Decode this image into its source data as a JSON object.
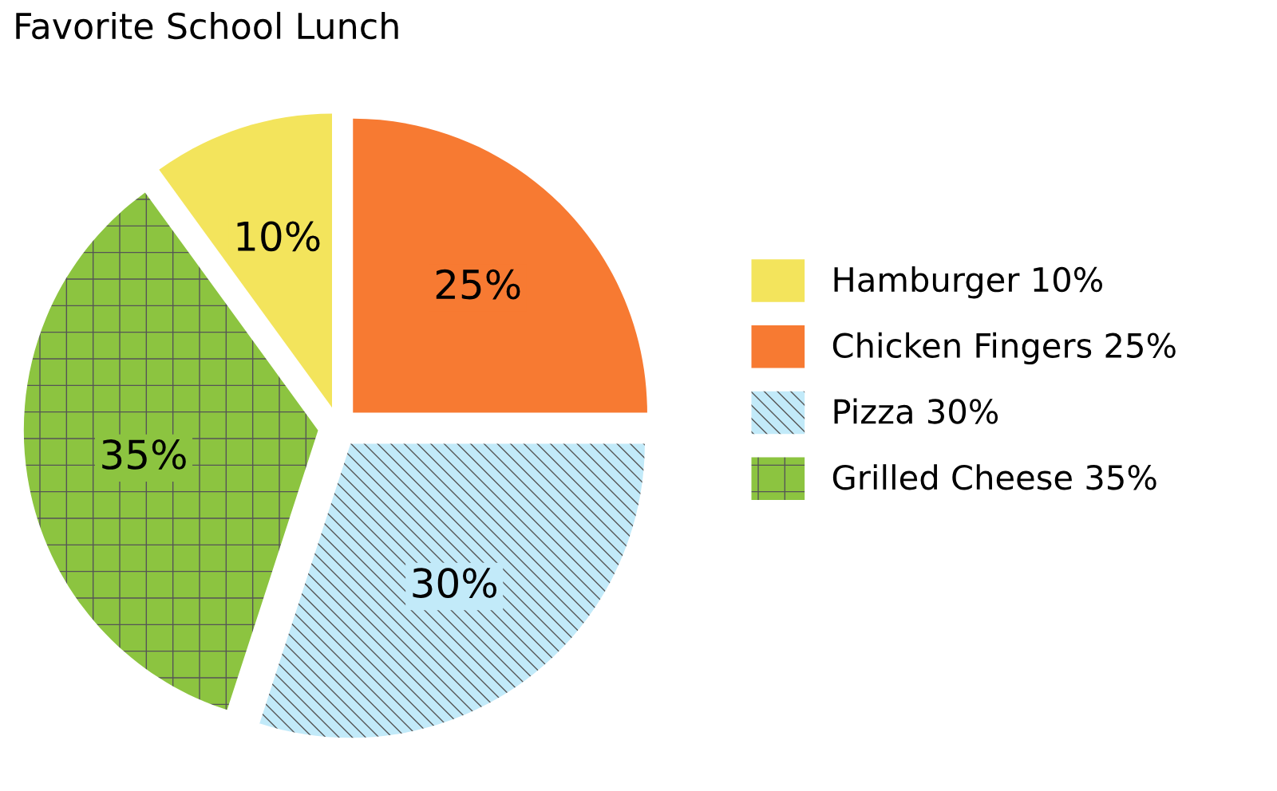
{
  "chart_data": {
    "type": "pie",
    "title": "Favorite School Lunch",
    "categories": [
      "Hamburger",
      "Chicken Fingers",
      "Pizza",
      "Grilled Cheese"
    ],
    "values": [
      10,
      25,
      30,
      35
    ],
    "value_labels": [
      "10%",
      "25%",
      "30%",
      "35%"
    ],
    "colors": [
      "#f3e45c",
      "#f77a32",
      "#c2eaf9",
      "#8cc440"
    ],
    "legend": "right"
  }
}
